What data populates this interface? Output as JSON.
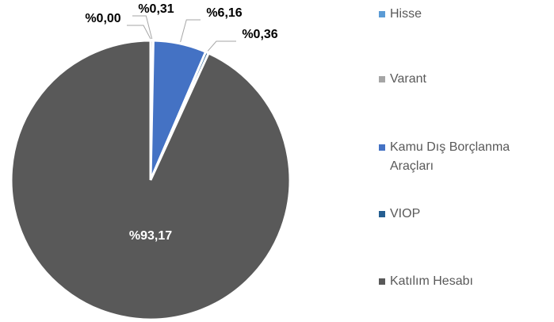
{
  "chart_data": {
    "type": "pie",
    "categories": [
      "Hisse",
      "Varant",
      "Kamu Dış Borçlanma Araçları",
      "VIOP",
      "Katılım Hesabı"
    ],
    "values": [
      0,
      0.31,
      6.16,
      0.36,
      93.17
    ],
    "value_labels": [
      "%0,00",
      "%0,31",
      "%6,16",
      "%0,36",
      "%93,17"
    ],
    "colors": [
      "#5b9bd5",
      "#a5a5a5",
      "#4472c4",
      "#255e91",
      "#595959"
    ],
    "legend": "right"
  }
}
